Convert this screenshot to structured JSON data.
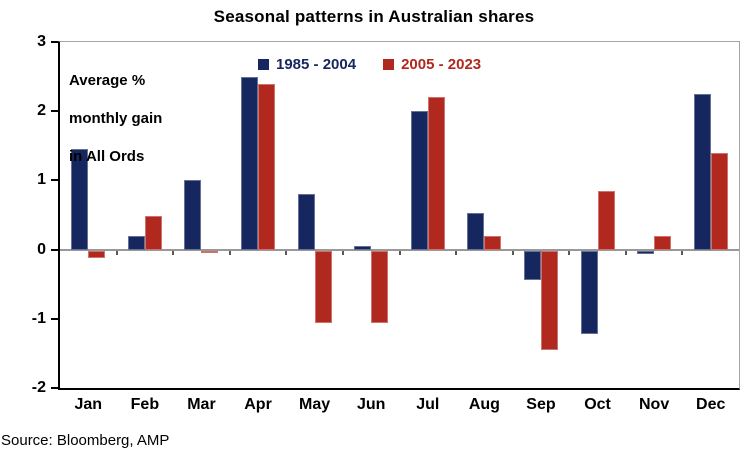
{
  "title": "Seasonal patterns in Australian shares",
  "annotation": {
    "lines": [
      "Average %",
      "monthly gain",
      "in All Ords"
    ]
  },
  "source": "Source: Bloomberg, AMP",
  "colors": {
    "series1": "#16265e",
    "series2": "#b0281e",
    "axis": "#000000",
    "plot_border": "#a6a6a6",
    "zero_line": "#999999",
    "tick": "#595959",
    "text": "#000000"
  },
  "chart_data": {
    "type": "bar",
    "title": "Seasonal patterns in Australian shares",
    "annotation": "Average % monthly gain in All Ords",
    "categories": [
      "Jan",
      "Feb",
      "Mar",
      "Apr",
      "May",
      "Jun",
      "Jul",
      "Aug",
      "Sep",
      "Oct",
      "Nov",
      "Dec"
    ],
    "series": [
      {
        "name": "1985 - 2004",
        "color": "#16265e",
        "values": [
          1.45,
          0.2,
          1.0,
          2.5,
          0.8,
          0.05,
          2.0,
          0.53,
          -0.43,
          -1.2,
          -0.05,
          2.25
        ]
      },
      {
        "name": "2005 - 2023",
        "color": "#b0281e",
        "values": [
          -0.1,
          0.48,
          -0.03,
          2.4,
          -1.05,
          -1.05,
          2.2,
          0.2,
          -1.43,
          0.85,
          0.2,
          1.4
        ]
      }
    ],
    "xlabel": "",
    "ylabel": "",
    "ylim": [
      -2,
      3
    ],
    "yticks": [
      3,
      2,
      1,
      0,
      -1,
      -2
    ],
    "grid": false,
    "legend_position": "top-inside"
  }
}
